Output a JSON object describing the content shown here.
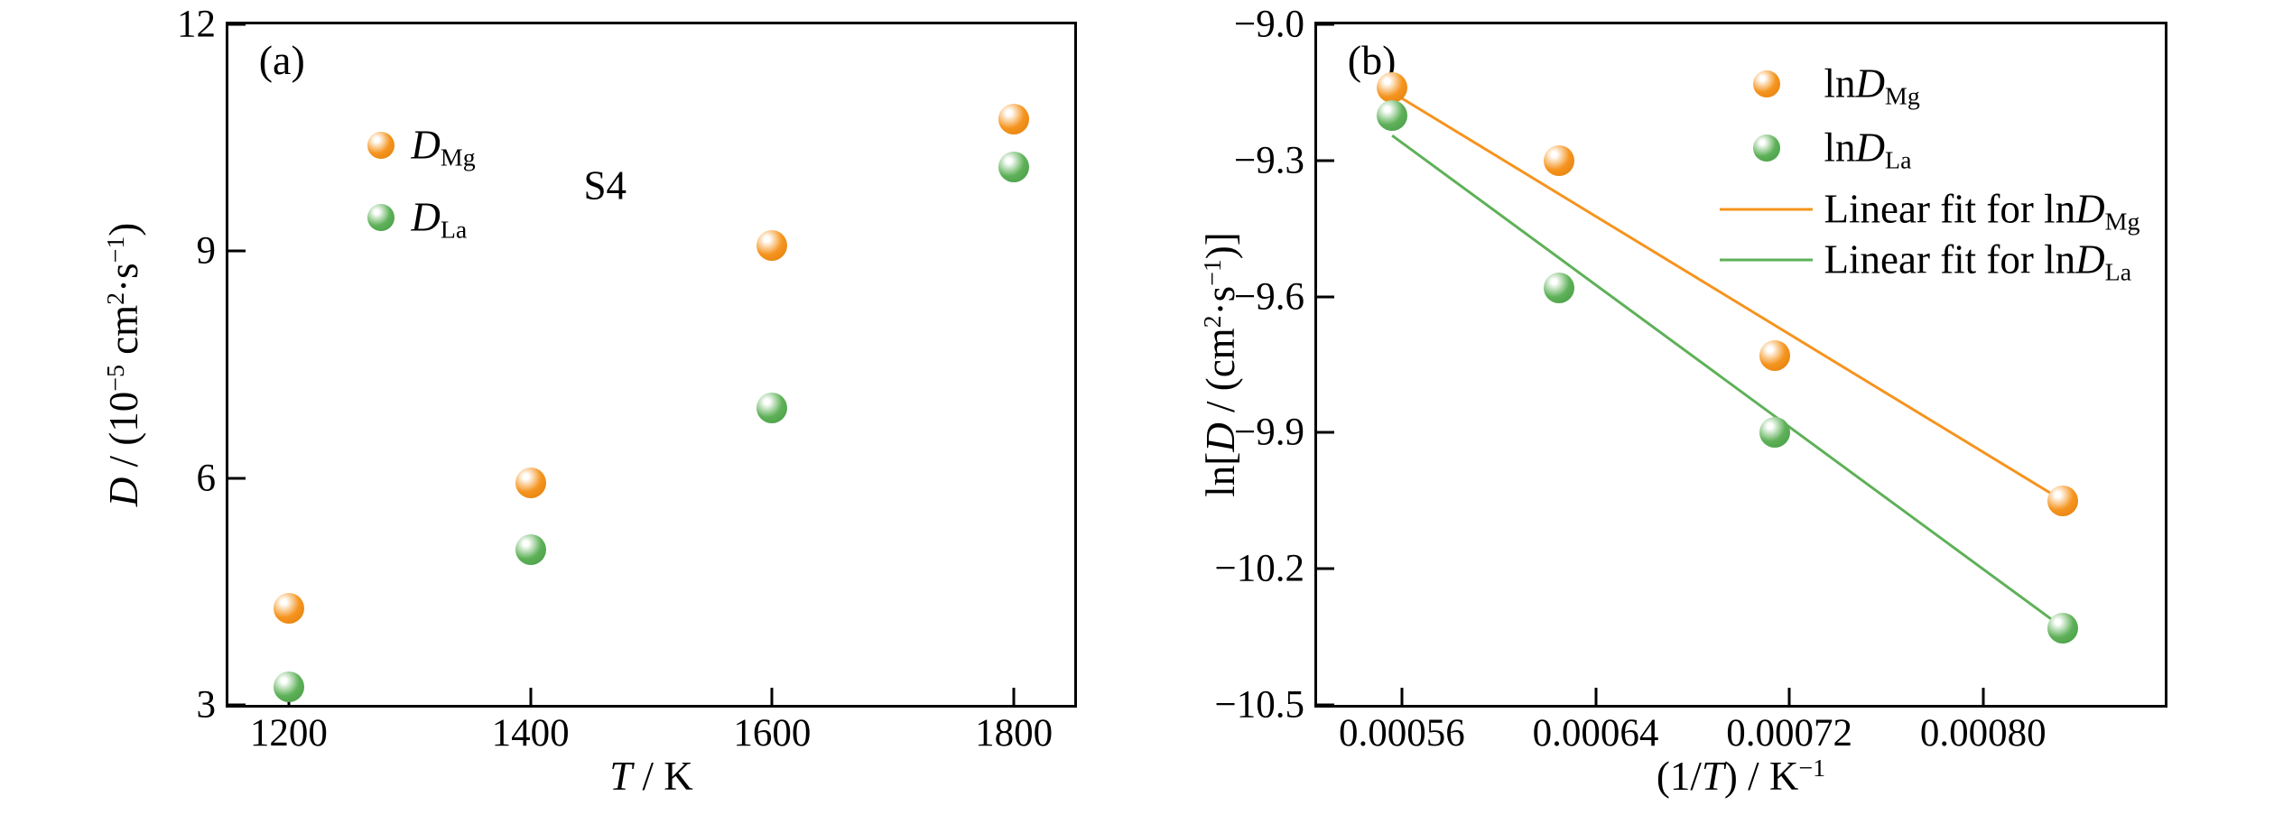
{
  "colors": {
    "mg_orange": "#F5941E",
    "mg_orange_dark": "#DE7E0C",
    "la_green": "#5EB158",
    "la_green_dark": "#449944",
    "axis_black": "#000000"
  },
  "chart_data": [
    {
      "id": "a",
      "type": "scatter",
      "panel_label": "(a)",
      "annotation": "S4",
      "xlabel": "T / K",
      "ylabel": "D / (10⁻⁵ cm²·s⁻¹)",
      "xlim": [
        1150,
        1850
      ],
      "ylim": [
        3,
        12
      ],
      "grid": false,
      "x_ticks": [
        1200,
        1400,
        1600,
        1800
      ],
      "x_tick_labels": [
        "1200",
        "1400",
        "1600",
        "1800"
      ],
      "y_ticks": [
        3,
        6,
        9,
        12
      ],
      "y_tick_labels": [
        "3",
        "6",
        "9",
        "12"
      ],
      "series": [
        {
          "name": "D_Mg",
          "color": "#F5941E",
          "color_dark": "#DE7E0C",
          "x": [
            1200,
            1400,
            1600,
            1800
          ],
          "y": [
            4.28,
            5.94,
            9.08,
            10.75
          ]
        },
        {
          "name": "D_La",
          "color": "#5EB158",
          "color_dark": "#449944",
          "x": [
            1200,
            1400,
            1600,
            1800
          ],
          "y": [
            3.24,
            5.05,
            6.93,
            10.12
          ]
        }
      ]
    },
    {
      "id": "b",
      "type": "scatter",
      "panel_label": "(b)",
      "annotation": "",
      "xlabel": "(1/T) / K⁻¹",
      "ylabel": "ln[D / (cm²·s⁻¹)]",
      "xlim": [
        0.000525,
        0.000875
      ],
      "ylim": [
        -10.5,
        -9.0
      ],
      "grid": false,
      "x_ticks": [
        0.00056,
        0.00064,
        0.00072,
        0.0008
      ],
      "x_tick_labels": [
        "0.00056",
        "0.00064",
        "0.00072",
        "0.00080"
      ],
      "y_ticks": [
        -10.5,
        -10.2,
        -9.9,
        -9.6,
        -9.3,
        -9.0
      ],
      "y_tick_labels": [
        "−10.5",
        "−10.2",
        "−9.9",
        "−9.6",
        "−9.3",
        "−9.0"
      ],
      "series": [
        {
          "name": "lnD_Mg",
          "color": "#F5941E",
          "color_dark": "#DE7E0C",
          "x": [
            0.000556,
            0.000625,
            0.000714,
            0.000833
          ],
          "y": [
            -9.14,
            -9.3,
            -9.73,
            -10.05
          ]
        },
        {
          "name": "lnD_La",
          "color": "#5EB158",
          "color_dark": "#449944",
          "x": [
            0.000556,
            0.000625,
            0.000714,
            0.000833
          ],
          "y": [
            -9.2,
            -9.58,
            -9.9,
            -10.33
          ]
        }
      ],
      "fit_lines": [
        {
          "name": "Linear fit for lnD_Mg",
          "color": "#F5941E",
          "x1": 0.000556,
          "y1": -9.15,
          "x2": 0.000833,
          "y2": -10.05
        },
        {
          "name": "Linear fit for lnD_La",
          "color": "#5EB158",
          "x1": 0.000556,
          "y1": -9.245,
          "x2": 0.000833,
          "y2": -10.33
        }
      ]
    }
  ],
  "rich_labels": {
    "a_y": [
      {
        "t": "D",
        "i": 1
      },
      {
        "t": " / (10"
      },
      {
        "t": "−5",
        "sup": 1
      },
      {
        "t": " cm"
      },
      {
        "t": "2",
        "sup": 1
      },
      {
        "t": "·s"
      },
      {
        "t": "−1",
        "sup": 1
      },
      {
        "t": ")"
      }
    ],
    "a_x": [
      {
        "t": "T",
        "i": 1
      },
      {
        "t": " / K"
      }
    ],
    "b_y": [
      {
        "t": "ln["
      },
      {
        "t": "D",
        "i": 1
      },
      {
        "t": " / (cm"
      },
      {
        "t": "2",
        "sup": 1
      },
      {
        "t": "·s"
      },
      {
        "t": "−1",
        "sup": 1
      },
      {
        "t": ")]"
      }
    ],
    "b_x": [
      {
        "t": "(1/"
      },
      {
        "t": "T",
        "i": 1
      },
      {
        "t": ") / K"
      },
      {
        "t": "−1",
        "sup": 1
      }
    ]
  },
  "legend_a": {
    "items": [
      {
        "type": "sphere",
        "color": "#F5941E",
        "color_dark": "#DE7E0C",
        "parts": [
          {
            "t": "D",
            "i": 1
          },
          {
            "t": "Mg",
            "sub": 1
          }
        ]
      },
      {
        "type": "sphere",
        "color": "#5EB158",
        "color_dark": "#449944",
        "parts": [
          {
            "t": "D",
            "i": 1
          },
          {
            "t": "La",
            "sub": 1
          }
        ]
      }
    ]
  },
  "legend_b": {
    "items": [
      {
        "type": "sphere",
        "color": "#F5941E",
        "color_dark": "#DE7E0C",
        "parts": [
          {
            "t": "ln"
          },
          {
            "t": "D",
            "i": 1
          },
          {
            "t": "Mg",
            "sub": 1
          }
        ]
      },
      {
        "type": "sphere",
        "color": "#5EB158",
        "color_dark": "#449944",
        "parts": [
          {
            "t": "ln"
          },
          {
            "t": "D",
            "i": 1
          },
          {
            "t": "La",
            "sub": 1
          }
        ]
      },
      {
        "type": "line",
        "color": "#F5941E",
        "color_dark": "#DE7E0C",
        "parts": [
          {
            "t": "Linear fit for ln"
          },
          {
            "t": "D",
            "i": 1
          },
          {
            "t": "Mg",
            "sub": 1
          }
        ]
      },
      {
        "type": "line",
        "color": "#5EB158",
        "color_dark": "#449944",
        "parts": [
          {
            "t": "Linear fit for ln"
          },
          {
            "t": "D",
            "i": 1
          },
          {
            "t": "La",
            "sub": 1
          }
        ]
      }
    ]
  }
}
